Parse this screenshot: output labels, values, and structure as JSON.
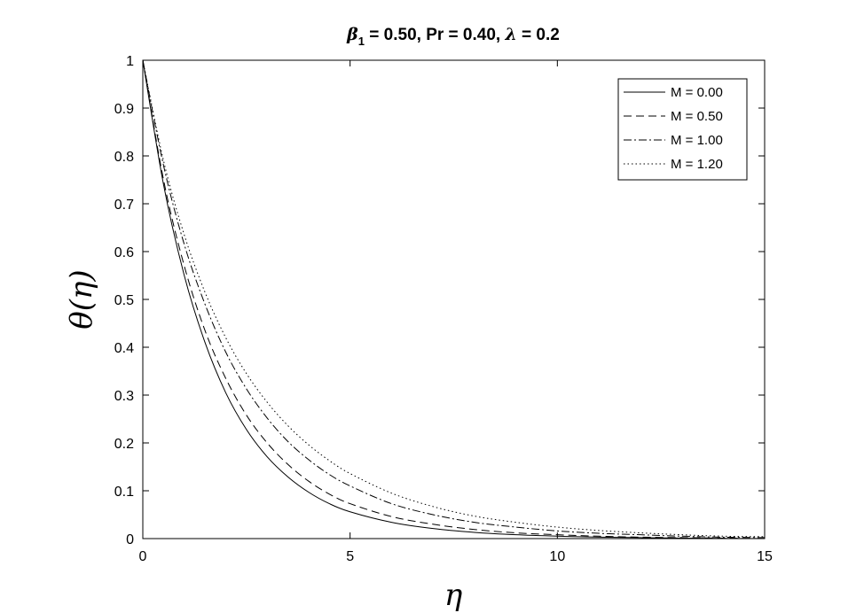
{
  "chart_data": {
    "type": "line",
    "title": {
      "beta_symbol": "β",
      "beta_subscript": "1",
      "beta_text": " = 0.50, Pr = 0.40, ",
      "lambda_symbol": "λ",
      "lambda_text": " = 0.2"
    },
    "xlabel": "η",
    "ylabel": "θ(η)",
    "xlim": [
      0,
      15
    ],
    "ylim": [
      0,
      1
    ],
    "xticks": [
      0,
      5,
      10,
      15
    ],
    "yticks": [
      0,
      0.1,
      0.2,
      0.3,
      0.4,
      0.5,
      0.6,
      0.7,
      0.8,
      0.9,
      1
    ],
    "xtick_labels": [
      "0",
      "5",
      "10",
      "15"
    ],
    "ytick_labels": [
      "0",
      "0.1",
      "0.2",
      "0.3",
      "0.4",
      "0.5",
      "0.6",
      "0.7",
      "0.8",
      "0.9",
      "1"
    ],
    "grid": false,
    "legend_position": "top-right",
    "line_color": "#000000",
    "series": [
      {
        "name": "M = 0.00",
        "style": "solid",
        "x": [
          0,
          0.5,
          1,
          1.5,
          2,
          2.5,
          3,
          3.5,
          4,
          4.5,
          5,
          6,
          7,
          8,
          9,
          10,
          11,
          12,
          13,
          14,
          15
        ],
        "y": [
          1,
          0.74,
          0.55,
          0.41,
          0.305,
          0.228,
          0.171,
          0.129,
          0.097,
          0.073,
          0.056,
          0.034,
          0.021,
          0.013,
          0.008,
          0.005,
          0.003,
          0.002,
          0.001,
          0.0005,
          0
        ]
      },
      {
        "name": "M = 0.50",
        "style": "dashed",
        "x": [
          0,
          0.5,
          1,
          1.5,
          2,
          2.5,
          3,
          3.5,
          4,
          4.5,
          5,
          6,
          7,
          8,
          9,
          10,
          11,
          12,
          13,
          14,
          15
        ],
        "y": [
          1,
          0.75,
          0.57,
          0.435,
          0.335,
          0.258,
          0.2,
          0.155,
          0.12,
          0.093,
          0.073,
          0.046,
          0.03,
          0.019,
          0.012,
          0.008,
          0.005,
          0.003,
          0.002,
          0.001,
          0
        ]
      },
      {
        "name": "M = 1.00",
        "style": "dashdot",
        "x": [
          0,
          0.5,
          1,
          1.5,
          2,
          2.5,
          3,
          3.5,
          4,
          4.5,
          5,
          6,
          7,
          8,
          9,
          10,
          11,
          12,
          13,
          14,
          15
        ],
        "y": [
          1,
          0.78,
          0.615,
          0.49,
          0.39,
          0.313,
          0.252,
          0.203,
          0.165,
          0.134,
          0.11,
          0.073,
          0.05,
          0.034,
          0.024,
          0.016,
          0.011,
          0.008,
          0.005,
          0.003,
          0.002
        ]
      },
      {
        "name": "M = 1.20",
        "style": "dotted",
        "x": [
          0,
          0.5,
          1,
          1.5,
          2,
          2.5,
          3,
          3.5,
          4,
          4.5,
          5,
          6,
          7,
          8,
          9,
          10,
          11,
          12,
          13,
          14,
          15
        ],
        "y": [
          1,
          0.79,
          0.635,
          0.515,
          0.42,
          0.345,
          0.285,
          0.236,
          0.196,
          0.163,
          0.136,
          0.095,
          0.067,
          0.047,
          0.034,
          0.024,
          0.017,
          0.012,
          0.008,
          0.005,
          0.004
        ]
      }
    ]
  }
}
